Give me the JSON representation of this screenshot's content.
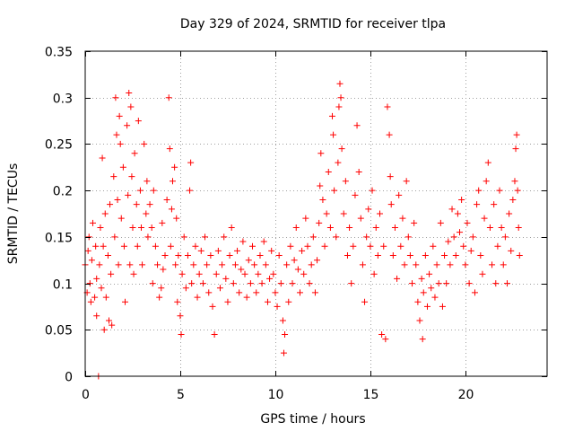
{
  "chart_data": {
    "type": "scatter",
    "title": "Day 329 of 2024, SRMTID for receiver tlpa",
    "xlabel": "GPS time / hours",
    "ylabel": "SRMTID / TECUs",
    "xlim": [
      0,
      24.3
    ],
    "ylim": [
      0,
      0.35
    ],
    "x_ticks": [
      0,
      5,
      10,
      15,
      20
    ],
    "y_ticks": [
      0,
      0.05,
      0.1,
      0.15,
      0.2,
      0.25,
      0.3,
      0.35
    ],
    "x_tick_labels": [
      "0",
      "5",
      "10",
      "15",
      "20"
    ],
    "y_tick_labels": [
      "0",
      "0.05",
      "0.1",
      "0.15",
      "0.2",
      "0.25",
      "0.3",
      "0.35"
    ],
    "grid": true,
    "marker": "+",
    "color": "#ff0000",
    "series": [
      {
        "name": "SRMTID",
        "points": [
          [
            0.0,
            0.12
          ],
          [
            0.1,
            0.09
          ],
          [
            0.15,
            0.135
          ],
          [
            0.2,
            0.15
          ],
          [
            0.25,
            0.1
          ],
          [
            0.3,
            0.08
          ],
          [
            0.35,
            0.125
          ],
          [
            0.4,
            0.165
          ],
          [
            0.5,
            0.085
          ],
          [
            0.55,
            0.14
          ],
          [
            0.6,
            0.065
          ],
          [
            0.6,
            0.105
          ],
          [
            0.7,
            0.0
          ],
          [
            0.75,
            0.12
          ],
          [
            0.8,
            0.16
          ],
          [
            0.85,
            0.095
          ],
          [
            0.9,
            0.235
          ],
          [
            0.95,
            0.14
          ],
          [
            1.0,
            0.05
          ],
          [
            1.05,
            0.175
          ],
          [
            1.1,
            0.085
          ],
          [
            1.2,
            0.13
          ],
          [
            1.25,
            0.06
          ],
          [
            1.3,
            0.185
          ],
          [
            1.35,
            0.11
          ],
          [
            1.4,
            0.055
          ],
          [
            1.5,
            0.215
          ],
          [
            1.55,
            0.15
          ],
          [
            1.6,
            0.3
          ],
          [
            1.65,
            0.26
          ],
          [
            1.7,
            0.19
          ],
          [
            1.75,
            0.12
          ],
          [
            1.8,
            0.28
          ],
          [
            1.85,
            0.25
          ],
          [
            1.9,
            0.17
          ],
          [
            2.0,
            0.225
          ],
          [
            2.05,
            0.14
          ],
          [
            2.1,
            0.08
          ],
          [
            2.2,
            0.27
          ],
          [
            2.25,
            0.195
          ],
          [
            2.3,
            0.305
          ],
          [
            2.35,
            0.12
          ],
          [
            2.4,
            0.29
          ],
          [
            2.45,
            0.215
          ],
          [
            2.5,
            0.16
          ],
          [
            2.55,
            0.11
          ],
          [
            2.6,
            0.24
          ],
          [
            2.7,
            0.185
          ],
          [
            2.75,
            0.14
          ],
          [
            2.8,
            0.275
          ],
          [
            2.9,
            0.2
          ],
          [
            2.95,
            0.16
          ],
          [
            3.0,
            0.12
          ],
          [
            3.1,
            0.25
          ],
          [
            3.2,
            0.175
          ],
          [
            3.25,
            0.21
          ],
          [
            3.3,
            0.15
          ],
          [
            3.4,
            0.185
          ],
          [
            3.5,
            0.16
          ],
          [
            3.55,
            0.1
          ],
          [
            3.6,
            0.2
          ],
          [
            3.7,
            0.14
          ],
          [
            3.8,
            0.12
          ],
          [
            3.9,
            0.085
          ],
          [
            4.0,
            0.095
          ],
          [
            4.05,
            0.165
          ],
          [
            4.1,
            0.115
          ],
          [
            4.2,
            0.13
          ],
          [
            4.3,
            0.19
          ],
          [
            4.4,
            0.3
          ],
          [
            4.45,
            0.245
          ],
          [
            4.5,
            0.14
          ],
          [
            4.55,
            0.18
          ],
          [
            4.6,
            0.21
          ],
          [
            4.7,
            0.225
          ],
          [
            4.75,
            0.12
          ],
          [
            4.8,
            0.17
          ],
          [
            4.85,
            0.08
          ],
          [
            4.9,
            0.13
          ],
          [
            5.0,
            0.065
          ],
          [
            5.05,
            0.045
          ],
          [
            5.1,
            0.11
          ],
          [
            5.2,
            0.15
          ],
          [
            5.3,
            0.095
          ],
          [
            5.4,
            0.13
          ],
          [
            5.5,
            0.2
          ],
          [
            5.55,
            0.23
          ],
          [
            5.6,
            0.1
          ],
          [
            5.7,
            0.12
          ],
          [
            5.8,
            0.14
          ],
          [
            5.9,
            0.085
          ],
          [
            6.0,
            0.11
          ],
          [
            6.1,
            0.135
          ],
          [
            6.2,
            0.1
          ],
          [
            6.3,
            0.15
          ],
          [
            6.4,
            0.12
          ],
          [
            6.5,
            0.09
          ],
          [
            6.6,
            0.13
          ],
          [
            6.7,
            0.075
          ],
          [
            6.8,
            0.045
          ],
          [
            6.9,
            0.11
          ],
          [
            7.0,
            0.135
          ],
          [
            7.1,
            0.095
          ],
          [
            7.2,
            0.12
          ],
          [
            7.3,
            0.15
          ],
          [
            7.4,
            0.105
          ],
          [
            7.5,
            0.08
          ],
          [
            7.6,
            0.13
          ],
          [
            7.7,
            0.16
          ],
          [
            7.8,
            0.1
          ],
          [
            7.9,
            0.12
          ],
          [
            8.0,
            0.135
          ],
          [
            8.1,
            0.09
          ],
          [
            8.2,
            0.115
          ],
          [
            8.3,
            0.145
          ],
          [
            8.4,
            0.11
          ],
          [
            8.5,
            0.085
          ],
          [
            8.6,
            0.125
          ],
          [
            8.7,
            0.1
          ],
          [
            8.8,
            0.14
          ],
          [
            8.9,
            0.12
          ],
          [
            9.0,
            0.09
          ],
          [
            9.1,
            0.11
          ],
          [
            9.2,
            0.13
          ],
          [
            9.3,
            0.1
          ],
          [
            9.4,
            0.145
          ],
          [
            9.5,
            0.12
          ],
          [
            9.6,
            0.08
          ],
          [
            9.7,
            0.105
          ],
          [
            9.8,
            0.135
          ],
          [
            9.9,
            0.11
          ],
          [
            10.0,
            0.09
          ],
          [
            10.1,
            0.075
          ],
          [
            10.2,
            0.13
          ],
          [
            10.3,
            0.1
          ],
          [
            10.4,
            0.06
          ],
          [
            10.45,
            0.025
          ],
          [
            10.5,
            0.045
          ],
          [
            10.6,
            0.12
          ],
          [
            10.7,
            0.08
          ],
          [
            10.8,
            0.14
          ],
          [
            10.9,
            0.1
          ],
          [
            11.0,
            0.125
          ],
          [
            11.1,
            0.16
          ],
          [
            11.2,
            0.115
          ],
          [
            11.3,
            0.09
          ],
          [
            11.4,
            0.135
          ],
          [
            11.5,
            0.11
          ],
          [
            11.6,
            0.17
          ],
          [
            11.7,
            0.14
          ],
          [
            11.8,
            0.1
          ],
          [
            11.9,
            0.12
          ],
          [
            12.0,
            0.15
          ],
          [
            12.1,
            0.09
          ],
          [
            12.2,
            0.125
          ],
          [
            12.3,
            0.165
          ],
          [
            12.35,
            0.205
          ],
          [
            12.4,
            0.24
          ],
          [
            12.5,
            0.19
          ],
          [
            12.6,
            0.14
          ],
          [
            12.7,
            0.175
          ],
          [
            12.8,
            0.22
          ],
          [
            12.9,
            0.16
          ],
          [
            13.0,
            0.28
          ],
          [
            13.05,
            0.26
          ],
          [
            13.1,
            0.2
          ],
          [
            13.2,
            0.15
          ],
          [
            13.3,
            0.23
          ],
          [
            13.35,
            0.29
          ],
          [
            13.4,
            0.315
          ],
          [
            13.45,
            0.3
          ],
          [
            13.5,
            0.245
          ],
          [
            13.6,
            0.175
          ],
          [
            13.7,
            0.21
          ],
          [
            13.8,
            0.13
          ],
          [
            13.9,
            0.16
          ],
          [
            14.0,
            0.1
          ],
          [
            14.1,
            0.14
          ],
          [
            14.2,
            0.195
          ],
          [
            14.3,
            0.27
          ],
          [
            14.4,
            0.22
          ],
          [
            14.5,
            0.17
          ],
          [
            14.6,
            0.12
          ],
          [
            14.7,
            0.08
          ],
          [
            14.8,
            0.15
          ],
          [
            14.9,
            0.18
          ],
          [
            15.0,
            0.14
          ],
          [
            15.1,
            0.2
          ],
          [
            15.2,
            0.11
          ],
          [
            15.3,
            0.16
          ],
          [
            15.4,
            0.13
          ],
          [
            15.5,
            0.175
          ],
          [
            15.6,
            0.045
          ],
          [
            15.7,
            0.14
          ],
          [
            15.8,
            0.04
          ],
          [
            15.9,
            0.29
          ],
          [
            16.0,
            0.26
          ],
          [
            16.05,
            0.215
          ],
          [
            16.1,
            0.185
          ],
          [
            16.2,
            0.13
          ],
          [
            16.3,
            0.16
          ],
          [
            16.4,
            0.105
          ],
          [
            16.5,
            0.195
          ],
          [
            16.6,
            0.14
          ],
          [
            16.7,
            0.17
          ],
          [
            16.8,
            0.12
          ],
          [
            16.9,
            0.21
          ],
          [
            17.0,
            0.15
          ],
          [
            17.1,
            0.13
          ],
          [
            17.2,
            0.1
          ],
          [
            17.3,
            0.165
          ],
          [
            17.4,
            0.12
          ],
          [
            17.5,
            0.08
          ],
          [
            17.6,
            0.06
          ],
          [
            17.7,
            0.105
          ],
          [
            17.75,
            0.04
          ],
          [
            17.8,
            0.09
          ],
          [
            17.9,
            0.13
          ],
          [
            18.0,
            0.075
          ],
          [
            18.1,
            0.11
          ],
          [
            18.2,
            0.095
          ],
          [
            18.3,
            0.14
          ],
          [
            18.4,
            0.085
          ],
          [
            18.5,
            0.12
          ],
          [
            18.6,
            0.1
          ],
          [
            18.7,
            0.165
          ],
          [
            18.8,
            0.075
          ],
          [
            18.9,
            0.13
          ],
          [
            19.0,
            0.1
          ],
          [
            19.1,
            0.145
          ],
          [
            19.2,
            0.12
          ],
          [
            19.3,
            0.18
          ],
          [
            19.4,
            0.15
          ],
          [
            19.5,
            0.13
          ],
          [
            19.6,
            0.175
          ],
          [
            19.7,
            0.155
          ],
          [
            19.8,
            0.19
          ],
          [
            19.9,
            0.14
          ],
          [
            20.0,
            0.12
          ],
          [
            20.1,
            0.165
          ],
          [
            20.2,
            0.1
          ],
          [
            20.3,
            0.135
          ],
          [
            20.4,
            0.15
          ],
          [
            20.5,
            0.09
          ],
          [
            20.6,
            0.185
          ],
          [
            20.7,
            0.2
          ],
          [
            20.8,
            0.13
          ],
          [
            20.9,
            0.11
          ],
          [
            21.0,
            0.17
          ],
          [
            21.1,
            0.21
          ],
          [
            21.2,
            0.23
          ],
          [
            21.3,
            0.16
          ],
          [
            21.4,
            0.12
          ],
          [
            21.5,
            0.185
          ],
          [
            21.6,
            0.1
          ],
          [
            21.7,
            0.14
          ],
          [
            21.8,
            0.2
          ],
          [
            21.9,
            0.16
          ],
          [
            22.0,
            0.12
          ],
          [
            22.1,
            0.15
          ],
          [
            22.2,
            0.1
          ],
          [
            22.3,
            0.175
          ],
          [
            22.4,
            0.135
          ],
          [
            22.5,
            0.19
          ],
          [
            22.6,
            0.21
          ],
          [
            22.65,
            0.245
          ],
          [
            22.7,
            0.26
          ],
          [
            22.75,
            0.2
          ],
          [
            22.8,
            0.16
          ],
          [
            22.85,
            0.13
          ]
        ]
      }
    ]
  }
}
